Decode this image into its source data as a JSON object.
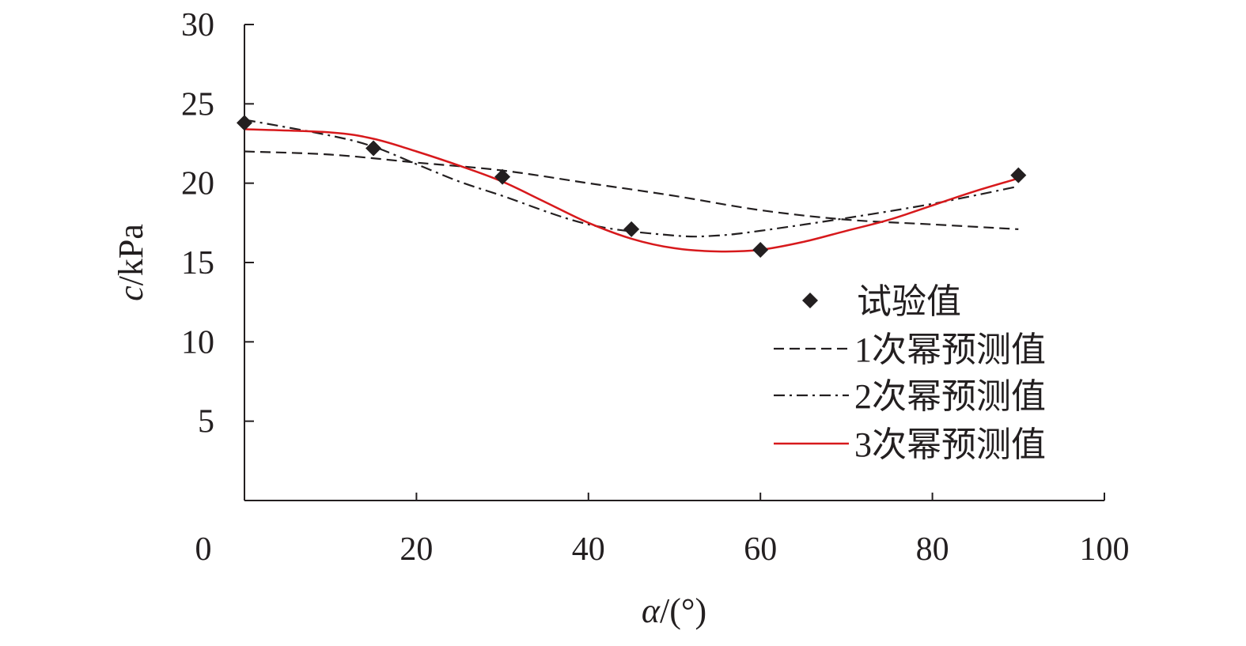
{
  "chart_data": {
    "type": "line",
    "title": "",
    "xlabel": {
      "symbol": "α",
      "unit": "/(°)"
    },
    "ylabel": {
      "symbol": "c",
      "unit": "/kPa"
    },
    "xlim": [
      0,
      100
    ],
    "ylim": [
      0,
      30
    ],
    "xticks": [
      0,
      20,
      40,
      60,
      80,
      100
    ],
    "xtick_labels": [
      "0",
      "20",
      "40",
      "60",
      "80",
      "100"
    ],
    "yticks": [
      5,
      10,
      15,
      20,
      25,
      30
    ],
    "ytick_labels": [
      "5",
      "10",
      "15",
      "20",
      "25",
      "30"
    ],
    "grid": false,
    "legend_position": "right-middle",
    "series": [
      {
        "name": "试验值",
        "style": "marker",
        "marker": "diamond",
        "color": "#231f20",
        "x": [
          0,
          15,
          30,
          45,
          60,
          90
        ],
        "y": [
          23.8,
          22.2,
          20.4,
          17.1,
          15.8,
          20.5
        ]
      },
      {
        "name": "1次幂预测值",
        "style": "dashed",
        "color": "#231f20",
        "x": [
          0,
          10,
          20,
          30,
          40,
          50,
          60,
          70,
          80,
          90
        ],
        "y": [
          22.0,
          21.8,
          21.3,
          20.8,
          20.0,
          19.2,
          18.3,
          17.7,
          17.4,
          17.1
        ]
      },
      {
        "name": "2次幂预测值",
        "style": "dashdot",
        "color": "#231f20",
        "x": [
          0,
          10,
          15,
          20,
          25,
          30,
          40,
          50,
          55,
          60,
          70,
          80,
          90
        ],
        "y": [
          24.0,
          23.0,
          22.3,
          21.2,
          20.1,
          19.2,
          17.4,
          16.7,
          16.7,
          17.0,
          17.8,
          18.7,
          19.8
        ]
      },
      {
        "name": "3次幂预测值",
        "style": "solid",
        "color": "#d7191c",
        "x": [
          0,
          10,
          15,
          20,
          25,
          30,
          35,
          40,
          45,
          50,
          55,
          60,
          65,
          70,
          75,
          80,
          85,
          90
        ],
        "y": [
          23.4,
          23.2,
          22.8,
          22.0,
          21.1,
          20.1,
          18.8,
          17.5,
          16.5,
          15.9,
          15.7,
          15.8,
          16.3,
          17.0,
          17.7,
          18.6,
          19.5,
          20.3
        ]
      }
    ]
  }
}
